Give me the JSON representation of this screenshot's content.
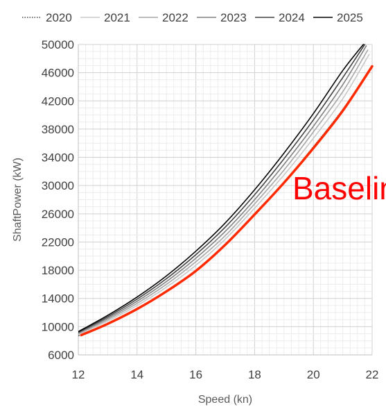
{
  "chart_data": {
    "type": "line",
    "xlabel": "Speed (kn)",
    "ylabel": "ShaftPower (kW)",
    "xlim": [
      12,
      22
    ],
    "ylim": [
      6000,
      50000
    ],
    "x_ticks": [
      12,
      14,
      16,
      18,
      20,
      22
    ],
    "y_ticks": [
      6000,
      10000,
      14000,
      18000,
      22000,
      26000,
      30000,
      34000,
      38000,
      42000,
      46000,
      50000
    ],
    "grid": true,
    "legend_position": "top",
    "series": [
      {
        "name": "2020",
        "color": "#404040",
        "style": "dotted",
        "x": [
          12,
          13,
          14,
          15,
          16,
          17,
          18,
          19,
          20,
          21,
          22
        ],
        "y": [
          8700,
          10500,
          12600,
          15100,
          18000,
          21700,
          26000,
          30500,
          35500,
          40800,
          46900
        ]
      },
      {
        "name": "2021",
        "color": "#c8c8c8",
        "style": "solid",
        "x": [
          12,
          13,
          14,
          15,
          16,
          17,
          18,
          19,
          20,
          21,
          21.9
        ],
        "y": [
          8900,
          10800,
          13000,
          15600,
          18700,
          22400,
          26800,
          31500,
          36700,
          42300,
          48600
        ]
      },
      {
        "name": "2022",
        "color": "#a6a6a6",
        "style": "solid",
        "x": [
          12,
          13,
          14,
          15,
          16,
          17,
          18,
          19,
          20,
          21,
          21.85
        ],
        "y": [
          9000,
          11000,
          13300,
          16000,
          19200,
          22900,
          27400,
          32200,
          37600,
          43300,
          49200
        ]
      },
      {
        "name": "2023",
        "color": "#7f7f7f",
        "style": "solid",
        "x": [
          12,
          13,
          14,
          15,
          16,
          17,
          18,
          19,
          20,
          21,
          21.8
        ],
        "y": [
          9100,
          11200,
          13600,
          16400,
          19700,
          23500,
          28000,
          33000,
          38400,
          44300,
          49800
        ]
      },
      {
        "name": "2024",
        "color": "#404040",
        "style": "solid",
        "x": [
          12,
          13,
          14,
          15,
          16,
          17,
          18,
          19,
          20,
          21,
          21.75
        ],
        "y": [
          9200,
          11400,
          13900,
          16800,
          20200,
          24100,
          28700,
          33800,
          39300,
          45300,
          50000
        ]
      },
      {
        "name": "2025",
        "color": "#000000",
        "style": "solid",
        "x": [
          12,
          13,
          14,
          15,
          16,
          17,
          18,
          19,
          20,
          21,
          21.7
        ],
        "y": [
          9300,
          11600,
          14200,
          17200,
          20700,
          24700,
          29400,
          34600,
          40200,
          46300,
          50000
        ]
      },
      {
        "color": "#ff2a00",
        "style": "solid",
        "width": 3.5,
        "x": [
          12.1,
          13,
          14,
          15,
          16,
          17,
          18,
          19,
          20,
          21,
          22
        ],
        "y": [
          8800,
          10400,
          12500,
          15000,
          17900,
          21600,
          25900,
          30400,
          35300,
          40600,
          46900
        ]
      }
    ],
    "annotations": [
      {
        "text": "Baselin",
        "color": "#ff0000"
      }
    ]
  }
}
